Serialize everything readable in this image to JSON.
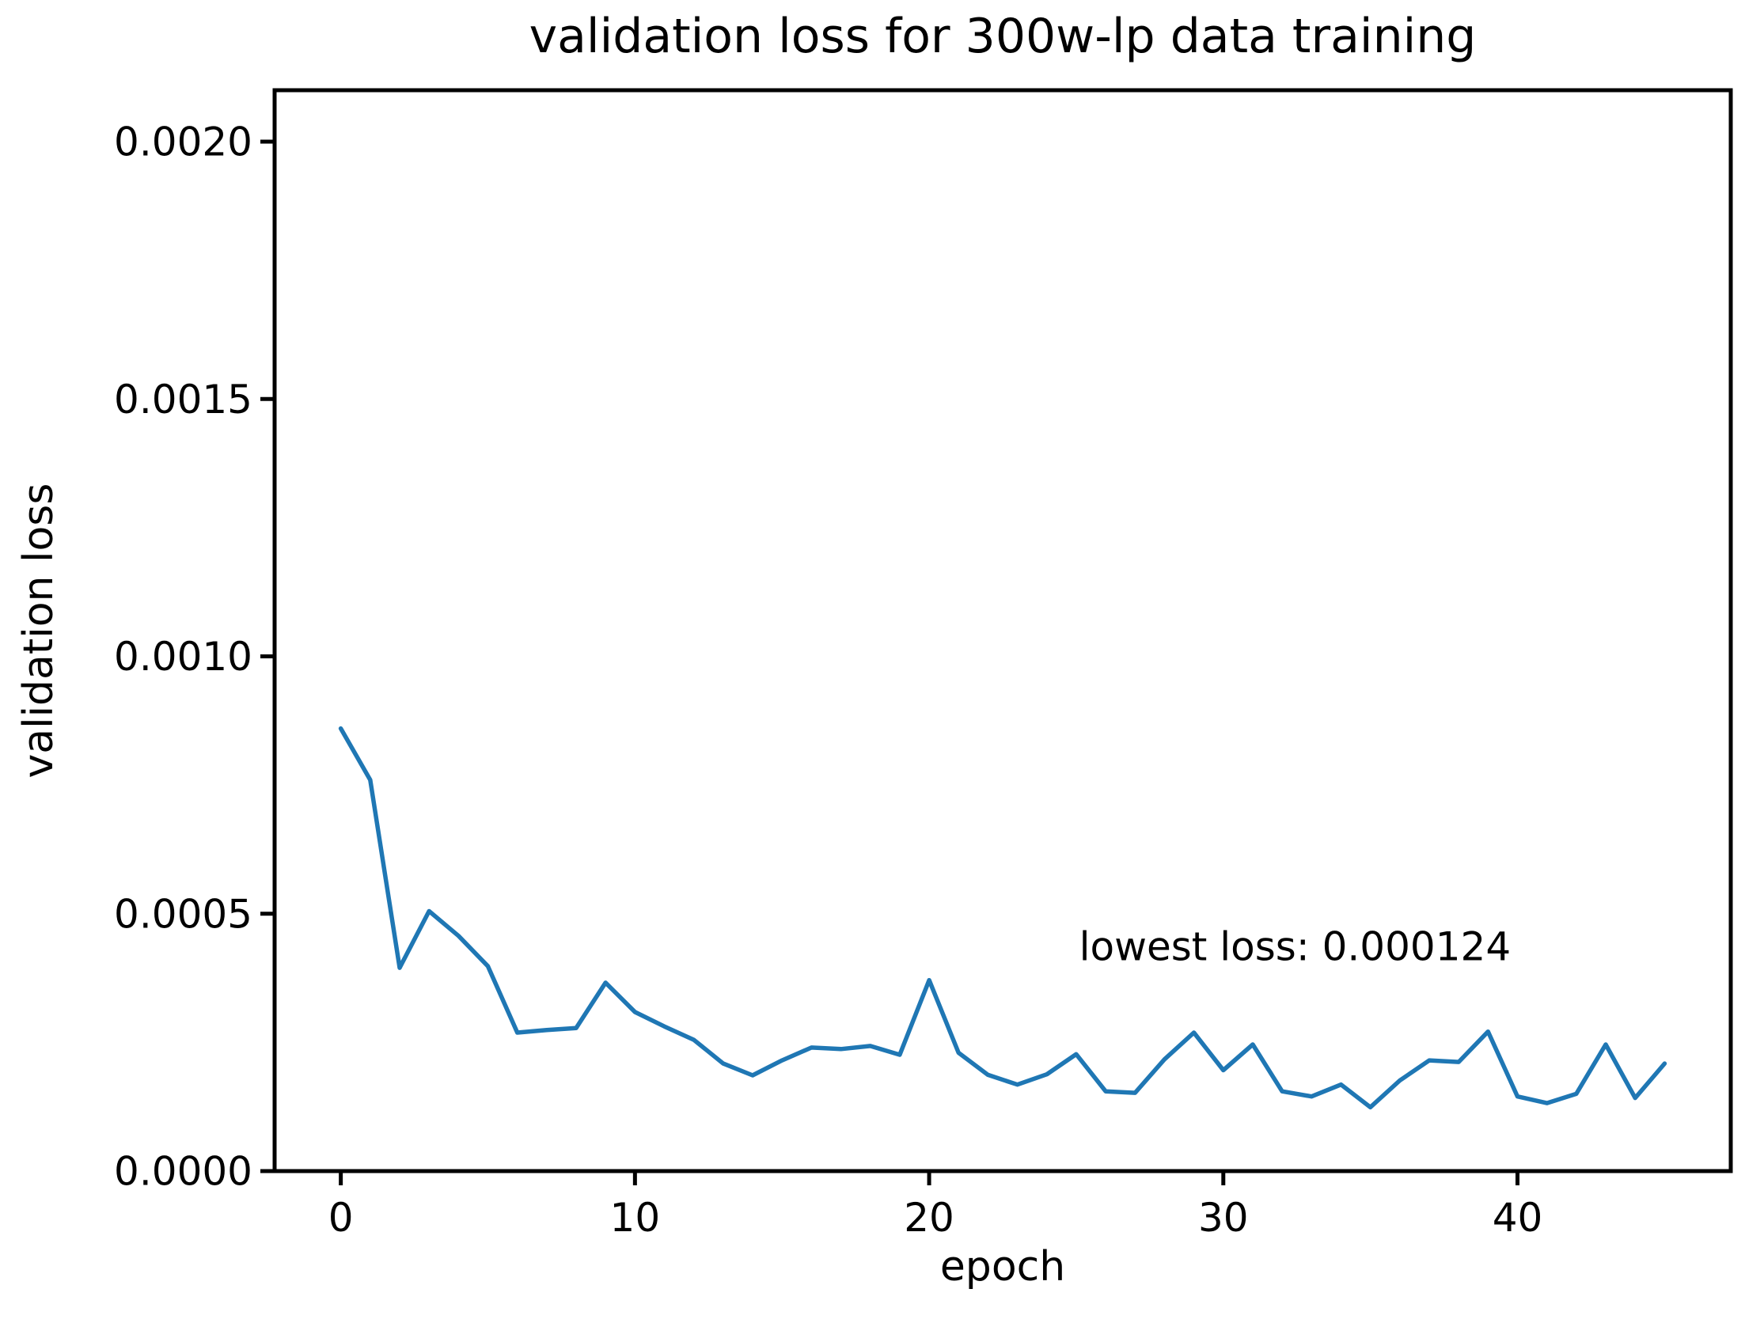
{
  "chart_data": {
    "type": "line",
    "title": "validation loss for 300w-lp data training",
    "xlabel": "epoch",
    "ylabel": "validation loss",
    "x": [
      0,
      1,
      2,
      3,
      4,
      5,
      6,
      7,
      8,
      9,
      10,
      11,
      12,
      13,
      14,
      15,
      16,
      17,
      18,
      19,
      20,
      21,
      22,
      23,
      24,
      25,
      26,
      27,
      28,
      29,
      30,
      31,
      32,
      33,
      34,
      35,
      36,
      37,
      38,
      39,
      40,
      41,
      42,
      43,
      44,
      45
    ],
    "series": [
      {
        "name": "validation loss",
        "values": [
          0.00086,
          0.00076,
          0.000395,
          0.000505,
          0.000457,
          0.000398,
          0.000269,
          0.000274,
          0.000278,
          0.000366,
          0.000309,
          0.000281,
          0.000255,
          0.000209,
          0.000186,
          0.000215,
          0.00024,
          0.000237,
          0.000243,
          0.000226,
          0.000371,
          0.00023,
          0.000187,
          0.000168,
          0.000188,
          0.000227,
          0.000155,
          0.000152,
          0.000217,
          0.000269,
          0.000196,
          0.000246,
          0.000155,
          0.000145,
          0.000168,
          0.000124,
          0.000176,
          0.000215,
          0.000212,
          0.000271,
          0.000145,
          0.000132,
          0.00015,
          0.000246,
          0.000142,
          0.000209
        ]
      }
    ],
    "xlim": [
      -2.25,
      47.25
    ],
    "ylim": [
      0,
      0.0021
    ],
    "xticks": {
      "values": [
        0,
        10,
        20,
        30,
        40
      ],
      "labels": [
        "0",
        "10",
        "20",
        "30",
        "40"
      ]
    },
    "yticks": {
      "values": [
        0.0,
        0.0005,
        0.001,
        0.0015,
        0.002
      ],
      "labels": [
        "0.0000",
        "0.0005",
        "0.0010",
        "0.0015",
        "0.0020"
      ]
    },
    "line_color": "#1f77b4",
    "axis_color": "#000000",
    "grid": false,
    "legend_position": "none",
    "lowest_loss": 0.000124,
    "annotation": {
      "text": "lowest loss: 0.000124",
      "x": 25.1,
      "y": 0.00041
    }
  }
}
